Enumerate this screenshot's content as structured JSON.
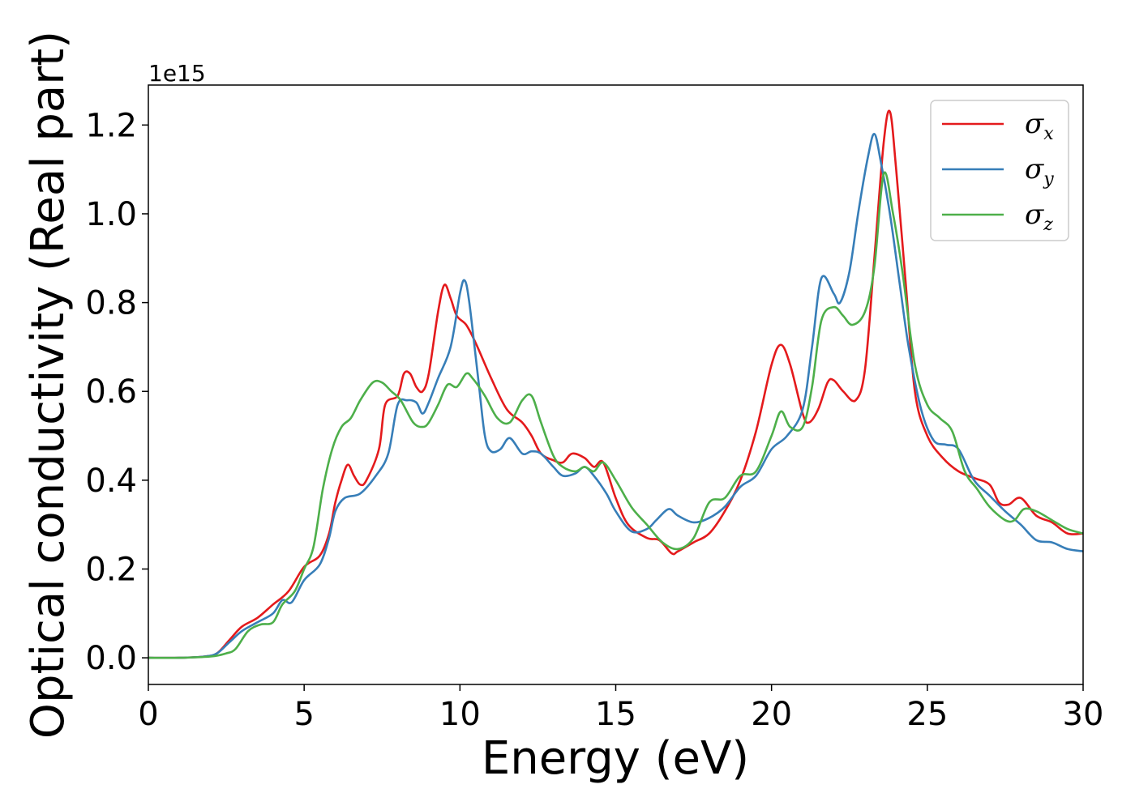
{
  "chart_data": {
    "type": "line",
    "title": "",
    "xlabel": "Energy (eV)",
    "ylabel": "Optical conductivity (Real part)",
    "y_offset_label": "1e15",
    "xlim": [
      0,
      30
    ],
    "ylim": [
      -0.06,
      1.29
    ],
    "x_ticks": [
      0,
      5,
      10,
      15,
      20,
      25,
      30
    ],
    "x_tick_labels": [
      "0",
      "5",
      "10",
      "15",
      "20",
      "25",
      "30"
    ],
    "y_ticks": [
      0.0,
      0.2,
      0.4,
      0.6,
      0.8,
      1.0,
      1.2
    ],
    "y_tick_labels": [
      "0.0",
      "0.2",
      "0.4",
      "0.6",
      "0.8",
      "1.0",
      "1.2"
    ],
    "grid": false,
    "legend_position": "top-right",
    "series": [
      {
        "name": "σx",
        "legend_symbol": "σ",
        "legend_sub": "x",
        "color": "#e41a1c",
        "points": [
          [
            0,
            0
          ],
          [
            1,
            0
          ],
          [
            1.8,
            0.003
          ],
          [
            2.2,
            0.01
          ],
          [
            2.6,
            0.04
          ],
          [
            3,
            0.07
          ],
          [
            3.5,
            0.09
          ],
          [
            4,
            0.12
          ],
          [
            4.5,
            0.15
          ],
          [
            5,
            0.205
          ],
          [
            5.5,
            0.23
          ],
          [
            5.8,
            0.28
          ],
          [
            6,
            0.35
          ],
          [
            6.2,
            0.4
          ],
          [
            6.4,
            0.435
          ],
          [
            6.6,
            0.41
          ],
          [
            6.8,
            0.39
          ],
          [
            7,
            0.4
          ],
          [
            7.4,
            0.47
          ],
          [
            7.6,
            0.57
          ],
          [
            8,
            0.59
          ],
          [
            8.2,
            0.64
          ],
          [
            8.4,
            0.64
          ],
          [
            8.6,
            0.61
          ],
          [
            8.8,
            0.6
          ],
          [
            9,
            0.64
          ],
          [
            9.3,
            0.78
          ],
          [
            9.5,
            0.84
          ],
          [
            9.7,
            0.81
          ],
          [
            9.9,
            0.77
          ],
          [
            10.2,
            0.75
          ],
          [
            10.5,
            0.71
          ],
          [
            11,
            0.63
          ],
          [
            11.5,
            0.56
          ],
          [
            12,
            0.53
          ],
          [
            12.3,
            0.5
          ],
          [
            12.6,
            0.46
          ],
          [
            13,
            0.445
          ],
          [
            13.3,
            0.44
          ],
          [
            13.6,
            0.46
          ],
          [
            14,
            0.45
          ],
          [
            14.3,
            0.43
          ],
          [
            14.6,
            0.44
          ],
          [
            15,
            0.36
          ],
          [
            15.4,
            0.3
          ],
          [
            16,
            0.27
          ],
          [
            16.4,
            0.265
          ],
          [
            16.8,
            0.235
          ],
          [
            17,
            0.24
          ],
          [
            17.5,
            0.26
          ],
          [
            18,
            0.28
          ],
          [
            18.5,
            0.33
          ],
          [
            19,
            0.4
          ],
          [
            19.5,
            0.51
          ],
          [
            20,
            0.66
          ],
          [
            20.3,
            0.705
          ],
          [
            20.6,
            0.66
          ],
          [
            21,
            0.55
          ],
          [
            21.2,
            0.53
          ],
          [
            21.5,
            0.56
          ],
          [
            21.8,
            0.62
          ],
          [
            22,
            0.625
          ],
          [
            22.3,
            0.6
          ],
          [
            22.7,
            0.58
          ],
          [
            23,
            0.65
          ],
          [
            23.3,
            0.9
          ],
          [
            23.6,
            1.16
          ],
          [
            23.8,
            1.23
          ],
          [
            24,
            1.1
          ],
          [
            24.3,
            0.85
          ],
          [
            24.6,
            0.6
          ],
          [
            25,
            0.5
          ],
          [
            25.5,
            0.45
          ],
          [
            26,
            0.42
          ],
          [
            26.5,
            0.405
          ],
          [
            27,
            0.39
          ],
          [
            27.3,
            0.35
          ],
          [
            27.6,
            0.345
          ],
          [
            28,
            0.36
          ],
          [
            28.5,
            0.32
          ],
          [
            29,
            0.305
          ],
          [
            29.5,
            0.28
          ],
          [
            30,
            0.28
          ]
        ]
      },
      {
        "name": "σy",
        "legend_symbol": "σ",
        "legend_sub": "y",
        "color": "#377eb8",
        "points": [
          [
            0,
            0
          ],
          [
            1,
            0
          ],
          [
            1.8,
            0.003
          ],
          [
            2.2,
            0.01
          ],
          [
            2.6,
            0.035
          ],
          [
            3,
            0.06
          ],
          [
            3.5,
            0.08
          ],
          [
            4,
            0.1
          ],
          [
            4.3,
            0.13
          ],
          [
            4.6,
            0.125
          ],
          [
            5,
            0.175
          ],
          [
            5.5,
            0.21
          ],
          [
            5.8,
            0.27
          ],
          [
            6,
            0.33
          ],
          [
            6.3,
            0.36
          ],
          [
            6.8,
            0.37
          ],
          [
            7.3,
            0.41
          ],
          [
            7.7,
            0.46
          ],
          [
            8,
            0.57
          ],
          [
            8.3,
            0.58
          ],
          [
            8.6,
            0.575
          ],
          [
            8.8,
            0.55
          ],
          [
            9,
            0.575
          ],
          [
            9.3,
            0.63
          ],
          [
            9.7,
            0.7
          ],
          [
            10,
            0.82
          ],
          [
            10.15,
            0.85
          ],
          [
            10.3,
            0.8
          ],
          [
            10.6,
            0.62
          ],
          [
            10.8,
            0.5
          ],
          [
            11,
            0.465
          ],
          [
            11.3,
            0.47
          ],
          [
            11.6,
            0.495
          ],
          [
            12,
            0.46
          ],
          [
            12.3,
            0.465
          ],
          [
            12.6,
            0.46
          ],
          [
            13,
            0.43
          ],
          [
            13.3,
            0.41
          ],
          [
            13.7,
            0.415
          ],
          [
            14,
            0.43
          ],
          [
            14.3,
            0.41
          ],
          [
            14.7,
            0.37
          ],
          [
            15,
            0.33
          ],
          [
            15.5,
            0.285
          ],
          [
            16,
            0.29
          ],
          [
            16.3,
            0.31
          ],
          [
            16.7,
            0.335
          ],
          [
            17,
            0.32
          ],
          [
            17.5,
            0.305
          ],
          [
            18,
            0.315
          ],
          [
            18.5,
            0.34
          ],
          [
            19,
            0.385
          ],
          [
            19.5,
            0.41
          ],
          [
            20,
            0.47
          ],
          [
            20.5,
            0.5
          ],
          [
            21,
            0.56
          ],
          [
            21.3,
            0.7
          ],
          [
            21.6,
            0.855
          ],
          [
            22,
            0.82
          ],
          [
            22.2,
            0.8
          ],
          [
            22.5,
            0.87
          ],
          [
            22.8,
            1.01
          ],
          [
            23.1,
            1.13
          ],
          [
            23.3,
            1.18
          ],
          [
            23.5,
            1.12
          ],
          [
            23.8,
            1
          ],
          [
            24.1,
            0.85
          ],
          [
            24.4,
            0.7
          ],
          [
            24.8,
            0.56
          ],
          [
            25.2,
            0.49
          ],
          [
            25.6,
            0.48
          ],
          [
            26,
            0.47
          ],
          [
            26.5,
            0.4
          ],
          [
            27,
            0.365
          ],
          [
            27.5,
            0.33
          ],
          [
            28,
            0.3
          ],
          [
            28.5,
            0.265
          ],
          [
            29,
            0.26
          ],
          [
            29.5,
            0.245
          ],
          [
            30,
            0.24
          ]
        ]
      },
      {
        "name": "σz",
        "legend_symbol": "σ",
        "legend_sub": "z",
        "color": "#4daf4a",
        "points": [
          [
            0,
            0
          ],
          [
            1,
            0
          ],
          [
            2,
            0.003
          ],
          [
            2.5,
            0.01
          ],
          [
            2.8,
            0.02
          ],
          [
            3.2,
            0.06
          ],
          [
            3.6,
            0.075
          ],
          [
            4,
            0.08
          ],
          [
            4.3,
            0.12
          ],
          [
            4.7,
            0.15
          ],
          [
            5,
            0.2
          ],
          [
            5.3,
            0.25
          ],
          [
            5.6,
            0.38
          ],
          [
            5.9,
            0.47
          ],
          [
            6.2,
            0.52
          ],
          [
            6.5,
            0.54
          ],
          [
            6.8,
            0.58
          ],
          [
            7.2,
            0.62
          ],
          [
            7.5,
            0.62
          ],
          [
            7.8,
            0.6
          ],
          [
            8.1,
            0.58
          ],
          [
            8.5,
            0.53
          ],
          [
            8.8,
            0.52
          ],
          [
            9,
            0.53
          ],
          [
            9.3,
            0.57
          ],
          [
            9.6,
            0.615
          ],
          [
            9.9,
            0.61
          ],
          [
            10.2,
            0.64
          ],
          [
            10.4,
            0.63
          ],
          [
            10.8,
            0.59
          ],
          [
            11.2,
            0.54
          ],
          [
            11.6,
            0.53
          ],
          [
            12,
            0.58
          ],
          [
            12.3,
            0.59
          ],
          [
            12.6,
            0.53
          ],
          [
            13,
            0.455
          ],
          [
            13.3,
            0.43
          ],
          [
            13.7,
            0.42
          ],
          [
            14,
            0.43
          ],
          [
            14.3,
            0.42
          ],
          [
            14.6,
            0.44
          ],
          [
            15,
            0.4
          ],
          [
            15.5,
            0.34
          ],
          [
            16,
            0.3
          ],
          [
            16.5,
            0.26
          ],
          [
            17,
            0.245
          ],
          [
            17.5,
            0.27
          ],
          [
            18,
            0.35
          ],
          [
            18.5,
            0.36
          ],
          [
            19,
            0.41
          ],
          [
            19.5,
            0.42
          ],
          [
            20,
            0.5
          ],
          [
            20.3,
            0.555
          ],
          [
            20.6,
            0.52
          ],
          [
            21,
            0.52
          ],
          [
            21.3,
            0.61
          ],
          [
            21.6,
            0.76
          ],
          [
            22,
            0.79
          ],
          [
            22.3,
            0.77
          ],
          [
            22.6,
            0.75
          ],
          [
            23,
            0.78
          ],
          [
            23.3,
            0.88
          ],
          [
            23.6,
            1.09
          ],
          [
            23.9,
            1.0
          ],
          [
            24.2,
            0.87
          ],
          [
            24.6,
            0.66
          ],
          [
            25,
            0.57
          ],
          [
            25.4,
            0.54
          ],
          [
            25.8,
            0.51
          ],
          [
            26.2,
            0.42
          ],
          [
            26.6,
            0.38
          ],
          [
            27,
            0.34
          ],
          [
            27.5,
            0.31
          ],
          [
            27.8,
            0.31
          ],
          [
            28.1,
            0.335
          ],
          [
            28.5,
            0.33
          ],
          [
            29,
            0.31
          ],
          [
            29.5,
            0.29
          ],
          [
            30,
            0.28
          ]
        ]
      }
    ]
  }
}
